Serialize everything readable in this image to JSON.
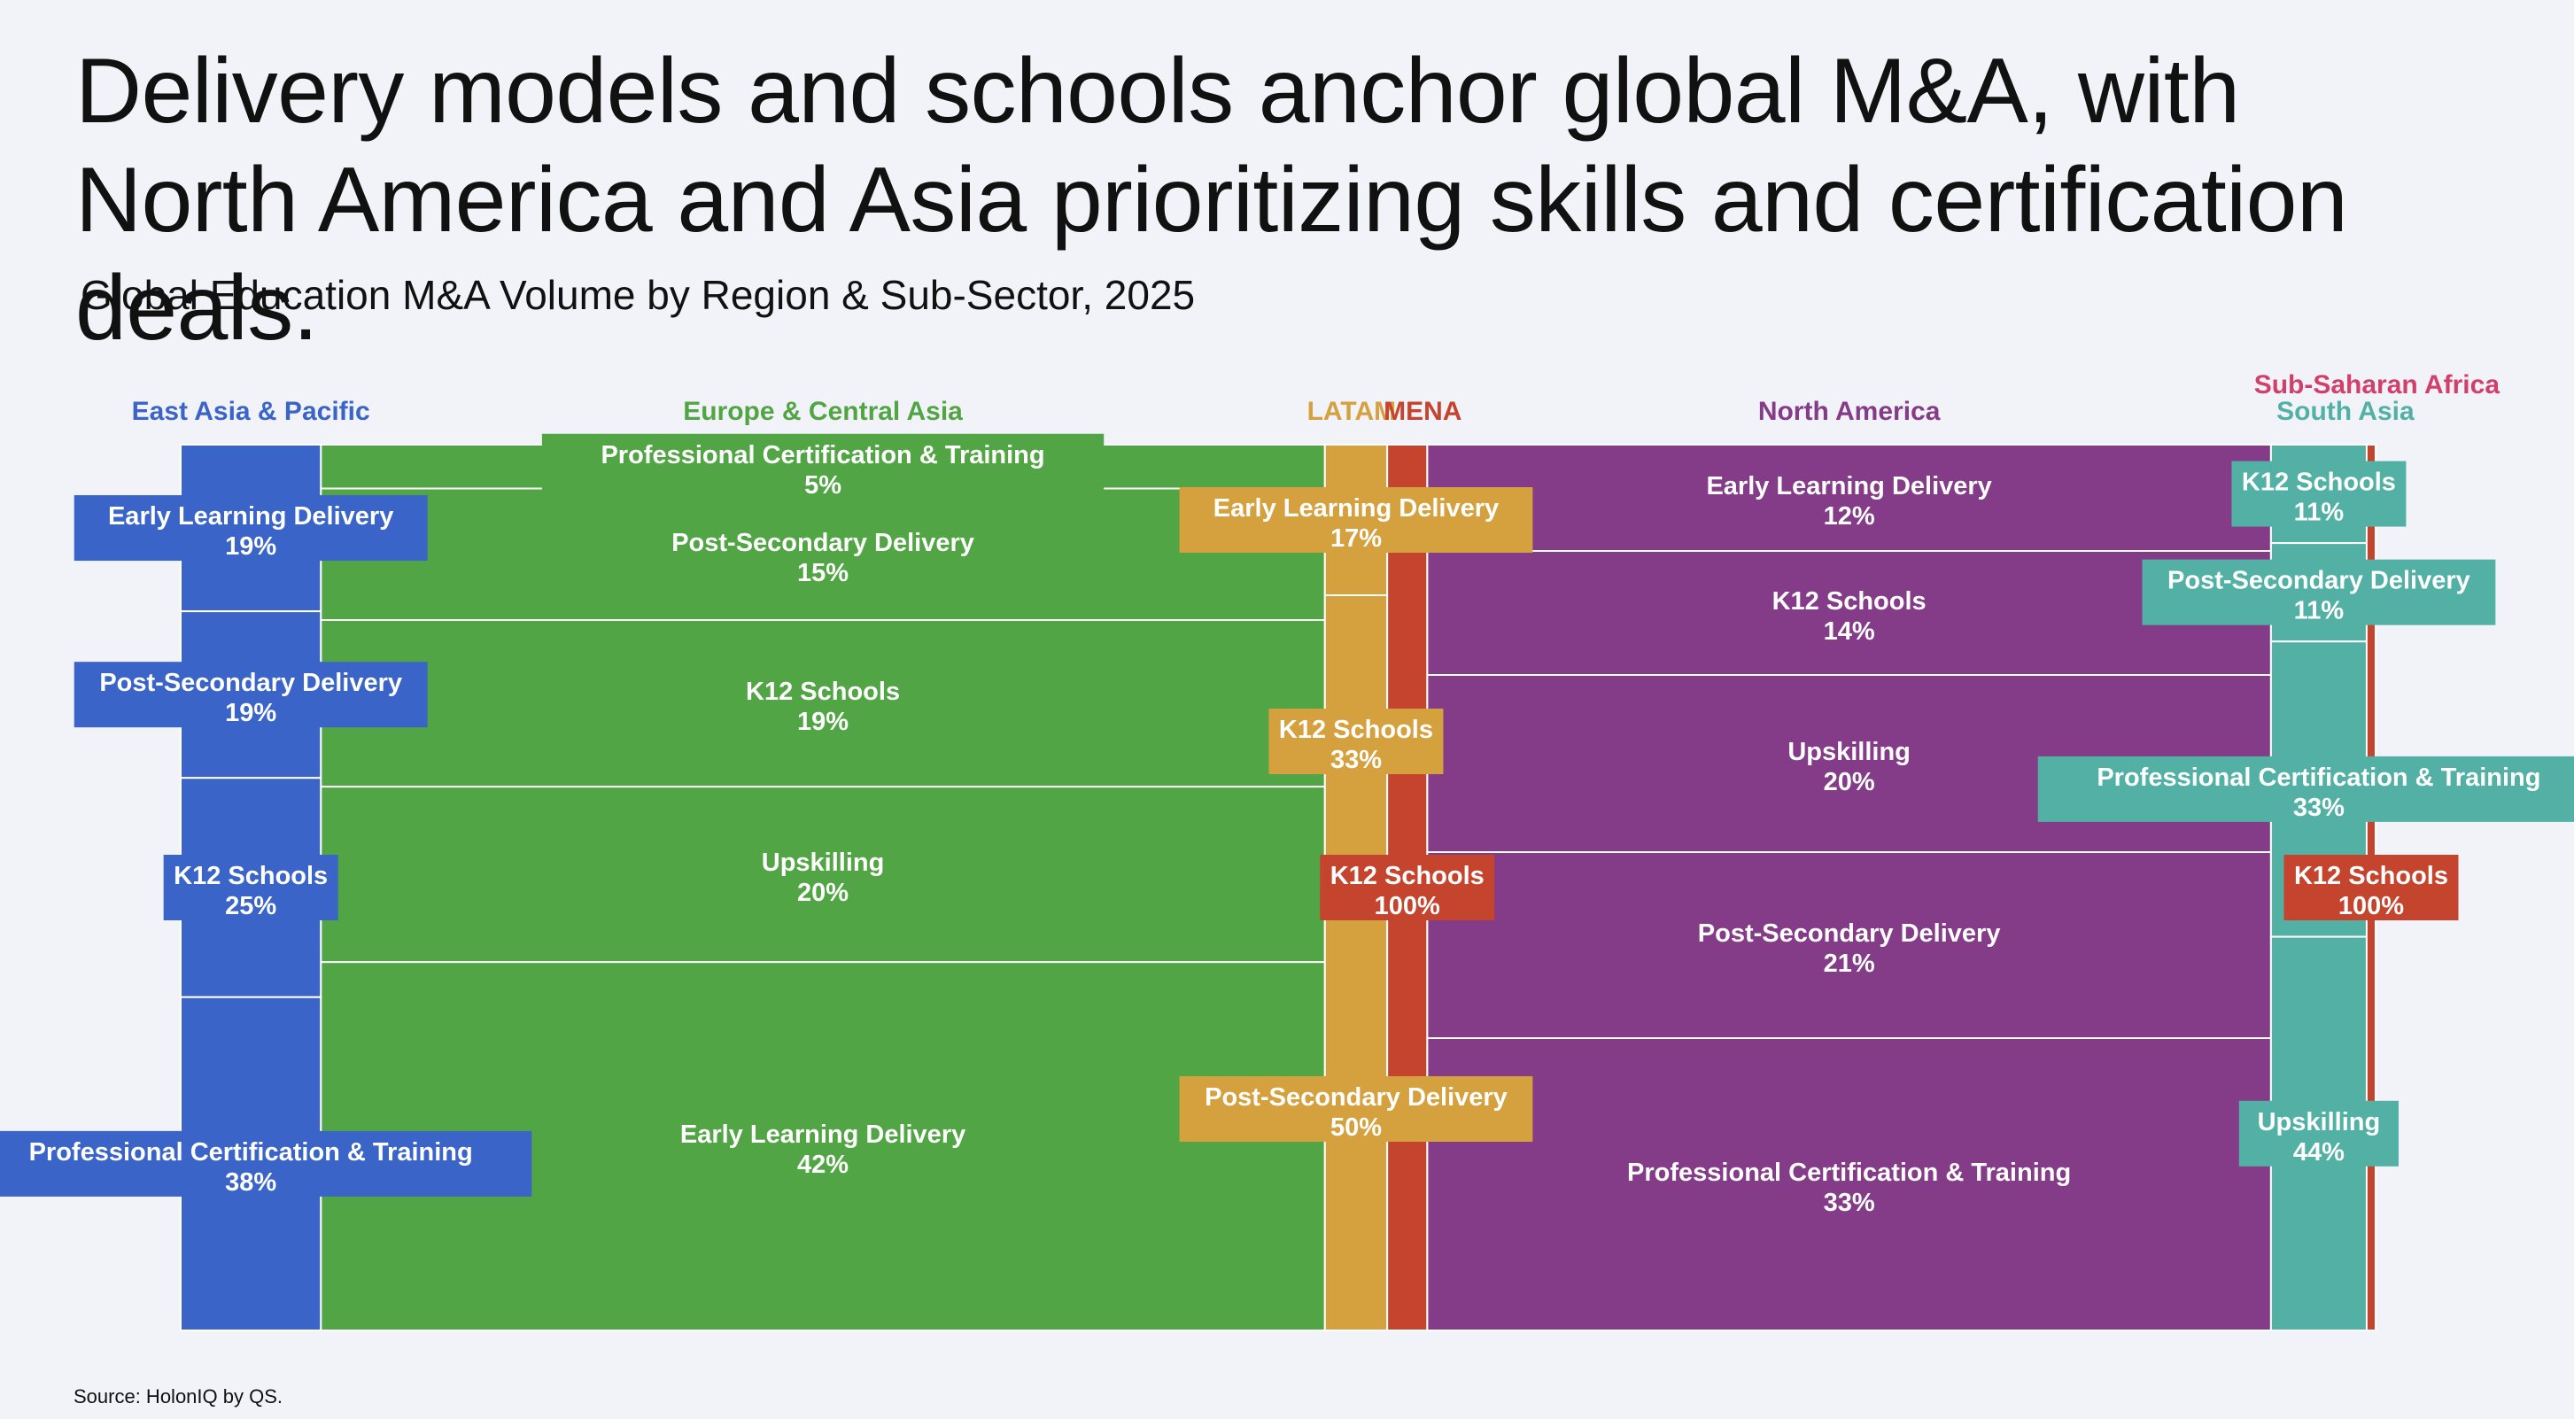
{
  "title": "Delivery models and schools anchor global M&A, with North America and Asia prioritizing skills and certification deals.",
  "subtitle": "Global Education M&A Volume by Region & Sub-Sector, 2025",
  "source": "Source: HolonIQ by QS.",
  "chart_data": {
    "type": "marimekko",
    "title": "Global Education M&A Volume by Region & Sub-Sector, 2025",
    "x_unit": "share of global M&A deal volume (%)",
    "y_unit": "share of region's deals by sub-sector (%)",
    "regions": [
      {
        "name": "East Asia & Pacific",
        "color": "#3a64c8",
        "label_color": "#3a64c8",
        "width_pct": 6.3,
        "segments": [
          {
            "label": "Early Learning Delivery",
            "value": 19
          },
          {
            "label": "Post-Secondary Delivery",
            "value": 19
          },
          {
            "label": "K12 Schools",
            "value": 25
          },
          {
            "label": "Professional Certification & Training",
            "value": 38
          }
        ]
      },
      {
        "name": "Europe & Central Asia",
        "color": "#52a544",
        "label_color": "#52a544",
        "width_pct": 45.1,
        "segments": [
          {
            "label": "Professional Certification & Training",
            "value": 5
          },
          {
            "label": "Post-Secondary Delivery",
            "value": 15
          },
          {
            "label": "K12 Schools",
            "value": 19
          },
          {
            "label": "Upskilling",
            "value": 20
          },
          {
            "label": "Early Learning Delivery",
            "value": 42
          }
        ]
      },
      {
        "name": "LATAM",
        "color": "#d4a13e",
        "label_color": "#d4a13e",
        "width_pct": 2.8,
        "segments": [
          {
            "label": "Early Learning Delivery",
            "value": 17
          },
          {
            "label": "K12 Schools",
            "value": 33
          },
          {
            "label": "Post-Secondary Delivery",
            "value": 50
          }
        ]
      },
      {
        "name": "MENA",
        "color": "#c5442d",
        "label_color": "#c5442d",
        "width_pct": 1.8,
        "segments": [
          {
            "label": "K12 Schools",
            "value": 100
          }
        ]
      },
      {
        "name": "North America",
        "color": "#843b88",
        "label_color": "#843b88",
        "width_pct": 37.9,
        "segments": [
          {
            "label": "Early Learning Delivery",
            "value": 12
          },
          {
            "label": "K12 Schools",
            "value": 14
          },
          {
            "label": "Upskilling",
            "value": 20
          },
          {
            "label": "Post-Secondary Delivery",
            "value": 21
          },
          {
            "label": "Professional Certification & Training",
            "value": 33
          }
        ]
      },
      {
        "name": "South Asia",
        "color": "#52b0a5",
        "label_color": "#52b0a5",
        "width_pct": 4.3,
        "segments": [
          {
            "label": "K12 Schools",
            "value": 11
          },
          {
            "label": "Post-Secondary Delivery",
            "value": 11
          },
          {
            "label": "Professional Certification & Training",
            "value": 33
          },
          {
            "label": "Upskilling",
            "value": 44
          }
        ]
      },
      {
        "name": "Sub-Saharan Africa",
        "color": "#c5442d",
        "label_color": "#d1406a",
        "width_pct": 0.4,
        "segments": [
          {
            "label": "K12 Schools",
            "value": 100
          }
        ]
      }
    ]
  }
}
